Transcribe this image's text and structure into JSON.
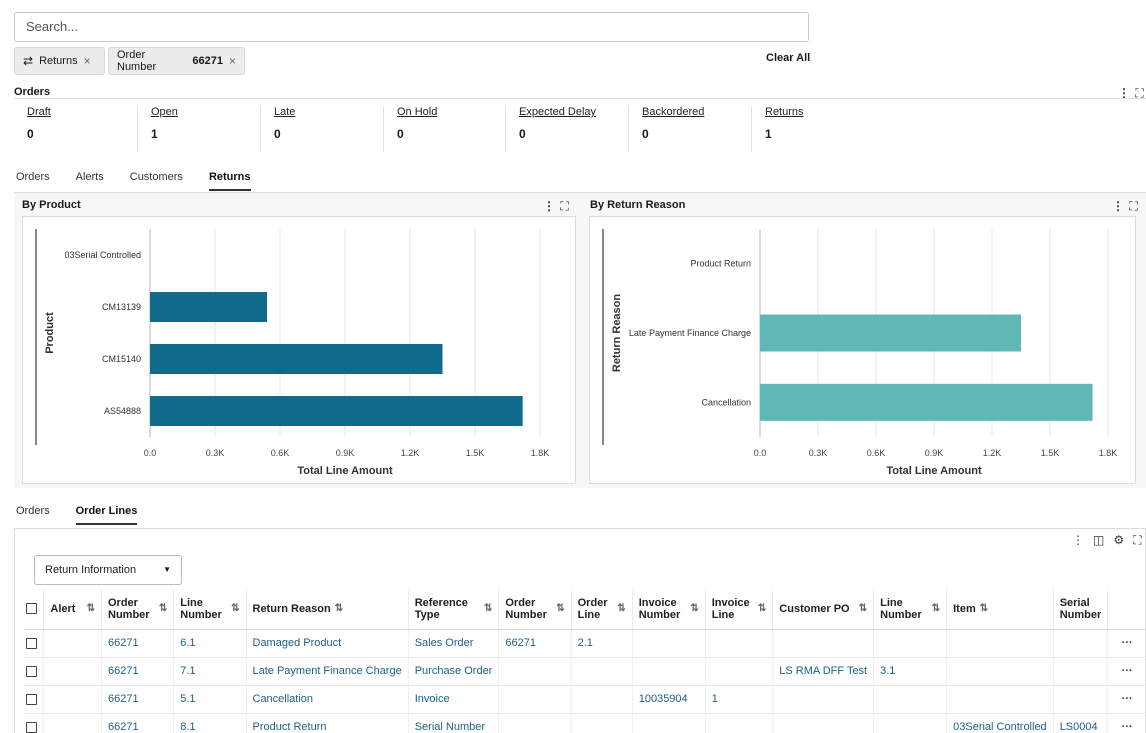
{
  "search": {
    "placeholder": "Search..."
  },
  "filters": [
    {
      "icon": "returns-icon",
      "label": "Returns"
    },
    {
      "label": "Order Number",
      "value": "66271"
    }
  ],
  "clear_all": "Clear All",
  "orders_section": {
    "title": "Orders",
    "tiles": [
      {
        "label": "Draft",
        "value": "0"
      },
      {
        "label": "Open",
        "value": "1"
      },
      {
        "label": "Late",
        "value": "0"
      },
      {
        "label": "On Hold",
        "value": "0"
      },
      {
        "label": "Expected Delay",
        "value": "0"
      },
      {
        "label": "Backordered",
        "value": "0"
      },
      {
        "label": "Returns",
        "value": "1"
      }
    ]
  },
  "top_tabs": [
    "Orders",
    "Alerts",
    "Customers",
    "Returns"
  ],
  "top_tabs_active": "Returns",
  "chart_data": [
    {
      "type": "bar",
      "orientation": "horizontal",
      "title": "By Product",
      "ylabel": "Product",
      "xlabel": "Total Line Amount",
      "categories": [
        "03Serial Controlled",
        "CM13139",
        "CM15140",
        "AS54888"
      ],
      "values": [
        0,
        540,
        1350,
        1720
      ],
      "xlim": [
        0,
        1800
      ],
      "xticks": [
        "0.0",
        "0.3K",
        "0.6K",
        "0.9K",
        "1.2K",
        "1.5K",
        "1.8K"
      ],
      "color": "#0f6a8c"
    },
    {
      "type": "bar",
      "orientation": "horizontal",
      "title": "By Return Reason",
      "ylabel": "Return Reason",
      "xlabel": "Total Line Amount",
      "categories": [
        "Product Return",
        "Late Payment Finance Charge",
        "Cancellation"
      ],
      "values": [
        0,
        1350,
        1720
      ],
      "xlim": [
        0,
        1800
      ],
      "xticks": [
        "0.0",
        "0.3K",
        "0.6K",
        "0.9K",
        "1.2K",
        "1.5K",
        "1.8K"
      ],
      "color": "#5fb8b6"
    }
  ],
  "bottom_tabs": [
    "Orders",
    "Order Lines"
  ],
  "bottom_tabs_active": "Order Lines",
  "view_select": "Return Information",
  "table": {
    "headers": [
      "Alert",
      "Order Number",
      "Line Number",
      "Return Reason",
      "Reference Type",
      "Order Number",
      "Order Line",
      "Invoice Number",
      "Invoice Line",
      "Customer PO",
      "Line Number",
      "Item",
      "Serial Number"
    ],
    "rows": [
      [
        "",
        "66271",
        "6.1",
        "Damaged Product",
        "Sales Order",
        "66271",
        "2.1",
        "",
        "",
        "",
        "",
        "",
        ""
      ],
      [
        "",
        "66271",
        "7.1",
        "Late Payment Finance Charge",
        "Purchase Order",
        "",
        "",
        "",
        "",
        "LS RMA DFF Test",
        "3.1",
        "",
        ""
      ],
      [
        "",
        "66271",
        "5.1",
        "Cancellation",
        "Invoice",
        "",
        "",
        "10035904",
        "1",
        "",
        "",
        "",
        ""
      ],
      [
        "",
        "66271",
        "8.1",
        "Product Return",
        "Serial Number",
        "",
        "",
        "",
        "",
        "",
        "",
        "03Serial Controlled",
        "LS0004"
      ]
    ],
    "row_menu": "···"
  },
  "colors": {
    "link": "#1d5f87",
    "bar_product": "#0f6a8c",
    "bar_reason": "#5fb8b6"
  }
}
